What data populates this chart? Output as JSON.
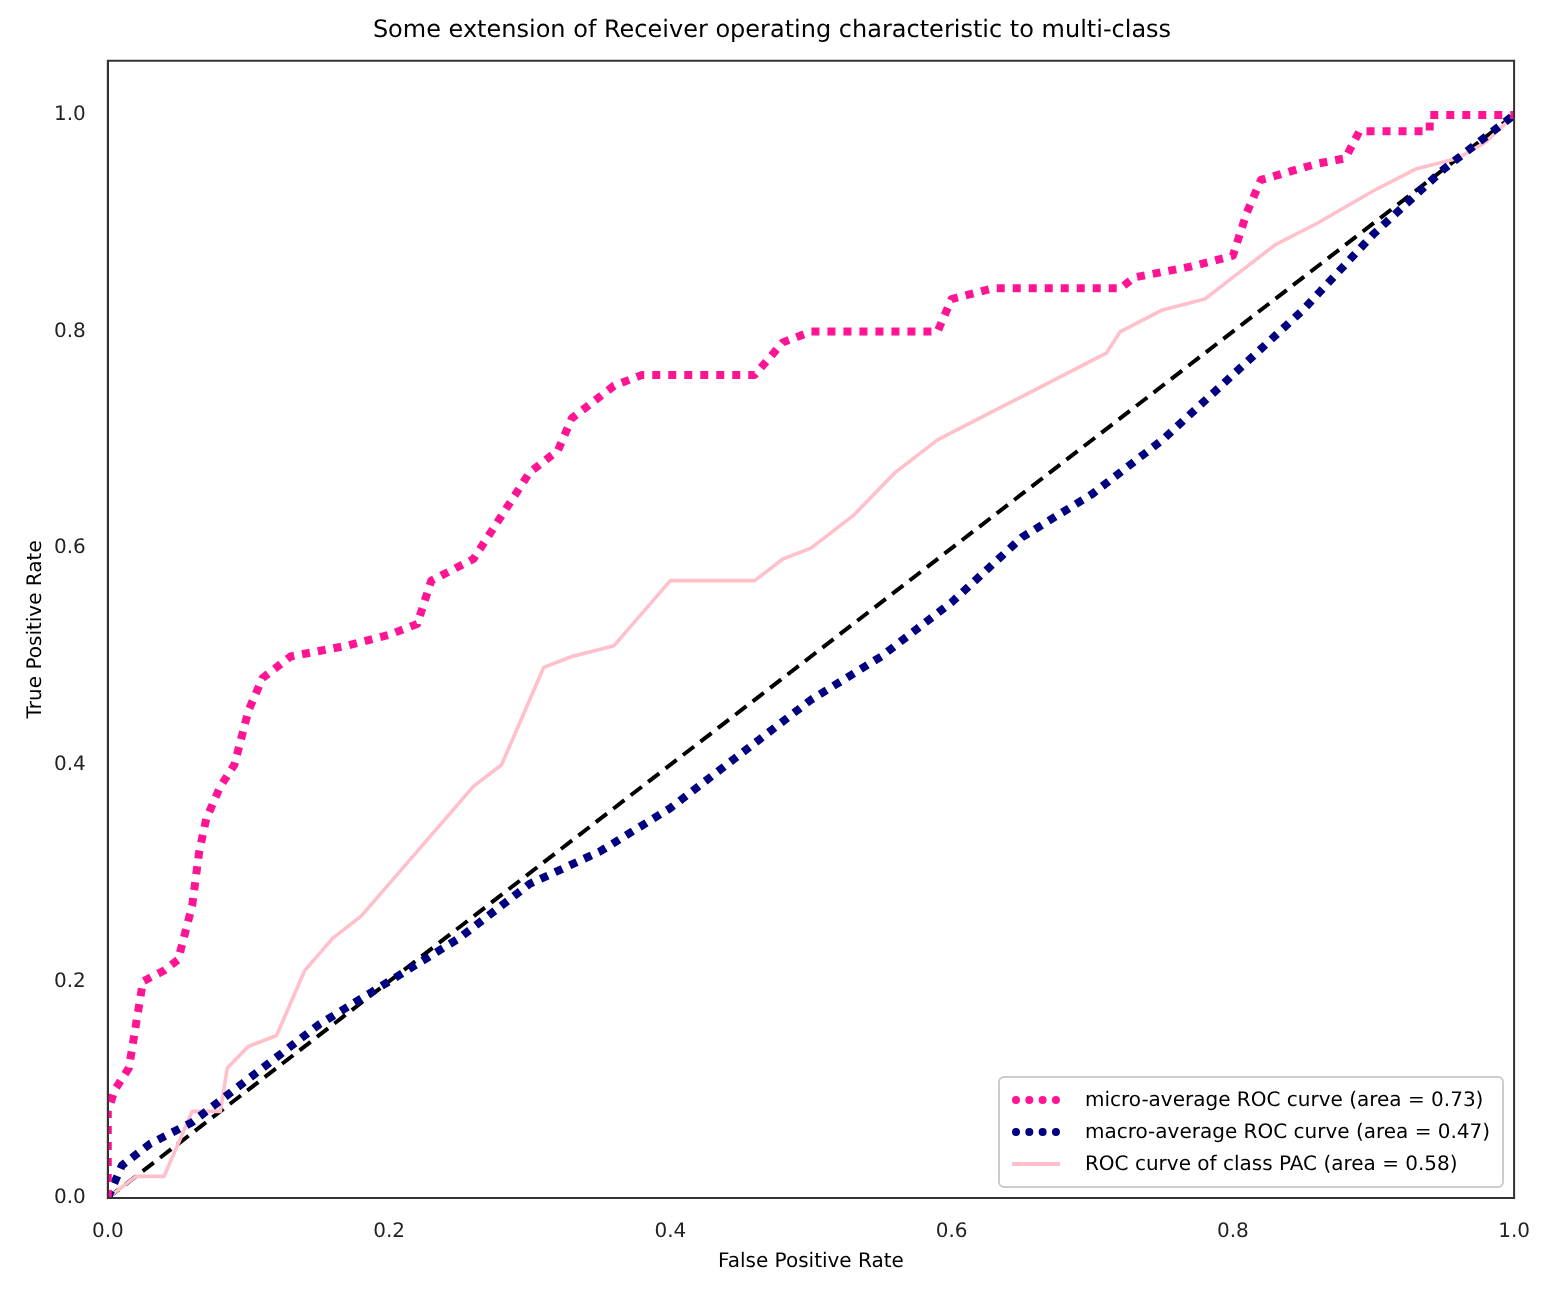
{
  "chart_data": {
    "type": "line",
    "title": "Some extension of Receiver operating characteristic to multi-class",
    "xlabel": "False Positive Rate",
    "ylabel": "True Positive Rate",
    "xlim": [
      0,
      1
    ],
    "ylim": [
      0,
      1.05
    ],
    "xticks": [
      {
        "value": 0,
        "label": "0.0"
      },
      {
        "value": 0.2,
        "label": "0.2"
      },
      {
        "value": 0.4,
        "label": "0.4"
      },
      {
        "value": 0.6,
        "label": "0.6"
      },
      {
        "value": 0.8,
        "label": "0.8"
      },
      {
        "value": 1,
        "label": "1.0"
      }
    ],
    "yticks": [
      {
        "value": 0,
        "label": "0.0"
      },
      {
        "value": 0.2,
        "label": "0.2"
      },
      {
        "value": 0.4,
        "label": "0.4"
      },
      {
        "value": 0.6,
        "label": "0.6"
      },
      {
        "value": 0.8,
        "label": "0.8"
      },
      {
        "value": 1,
        "label": "1.0"
      }
    ],
    "grid": false,
    "legend": "bottom right",
    "marker": "none",
    "series": [
      {
        "name": "micro-average ROC curve (area = 0.73)",
        "color": "#ff1493",
        "line_style": "dotted",
        "x": [
          0,
          0,
          0.005,
          0.015,
          0.02,
          0.025,
          0.04,
          0.05,
          0.06,
          0.065,
          0.07,
          0.08,
          0.09,
          0.1,
          0.11,
          0.13,
          0.17,
          0.2,
          0.22,
          0.23,
          0.26,
          0.28,
          0.3,
          0.32,
          0.33,
          0.36,
          0.38,
          0.46,
          0.48,
          0.5,
          0.59,
          0.6,
          0.63,
          0.72,
          0.73,
          0.77,
          0.8,
          0.81,
          0.82,
          0.86,
          0.88,
          0.89,
          0.94,
          0.94,
          1
        ],
        "values": [
          0,
          0.08,
          0.1,
          0.12,
          0.16,
          0.2,
          0.21,
          0.22,
          0.27,
          0.32,
          0.35,
          0.38,
          0.4,
          0.45,
          0.48,
          0.5,
          0.51,
          0.52,
          0.53,
          0.57,
          0.59,
          0.63,
          0.67,
          0.69,
          0.72,
          0.75,
          0.76,
          0.76,
          0.79,
          0.8,
          0.8,
          0.83,
          0.84,
          0.84,
          0.85,
          0.86,
          0.87,
          0.91,
          0.94,
          0.955,
          0.96,
          0.985,
          0.985,
          1,
          1
        ]
      },
      {
        "name": "macro-average ROC curve (area = 0.47)",
        "color": "#000080",
        "line_style": "dotted",
        "x": [
          0,
          0.01,
          0.03,
          0.06,
          0.1,
          0.15,
          0.2,
          0.25,
          0.3,
          0.35,
          0.4,
          0.45,
          0.5,
          0.55,
          0.6,
          0.65,
          0.7,
          0.75,
          0.8,
          0.85,
          0.9,
          0.95,
          1
        ],
        "values": [
          0,
          0.03,
          0.05,
          0.07,
          0.11,
          0.16,
          0.2,
          0.24,
          0.29,
          0.32,
          0.36,
          0.41,
          0.46,
          0.5,
          0.55,
          0.61,
          0.65,
          0.7,
          0.76,
          0.82,
          0.89,
          0.95,
          1
        ]
      },
      {
        "name": "ROC curve of class PAC (area = 0.58)",
        "color": "#ffc0cb",
        "line_style": "solid",
        "x": [
          0,
          0.02,
          0.04,
          0.05,
          0.06,
          0.08,
          0.085,
          0.1,
          0.12,
          0.13,
          0.14,
          0.16,
          0.18,
          0.2,
          0.22,
          0.24,
          0.26,
          0.28,
          0.29,
          0.3,
          0.31,
          0.33,
          0.36,
          0.38,
          0.4,
          0.46,
          0.48,
          0.5,
          0.53,
          0.56,
          0.59,
          0.62,
          0.65,
          0.68,
          0.71,
          0.72,
          0.75,
          0.78,
          0.8,
          0.83,
          0.86,
          0.9,
          0.93,
          0.96,
          0.98,
          1
        ],
        "values": [
          0,
          0.02,
          0.02,
          0.05,
          0.08,
          0.08,
          0.12,
          0.14,
          0.15,
          0.18,
          0.21,
          0.24,
          0.26,
          0.29,
          0.32,
          0.35,
          0.38,
          0.4,
          0.43,
          0.46,
          0.49,
          0.5,
          0.51,
          0.54,
          0.57,
          0.57,
          0.59,
          0.6,
          0.63,
          0.67,
          0.7,
          0.72,
          0.74,
          0.76,
          0.78,
          0.8,
          0.82,
          0.83,
          0.85,
          0.88,
          0.9,
          0.93,
          0.95,
          0.96,
          0.975,
          1
        ]
      },
      {
        "color": "#000000",
        "line_style": "dashed",
        "x": [
          0,
          1
        ],
        "values": [
          0,
          1
        ]
      }
    ]
  }
}
